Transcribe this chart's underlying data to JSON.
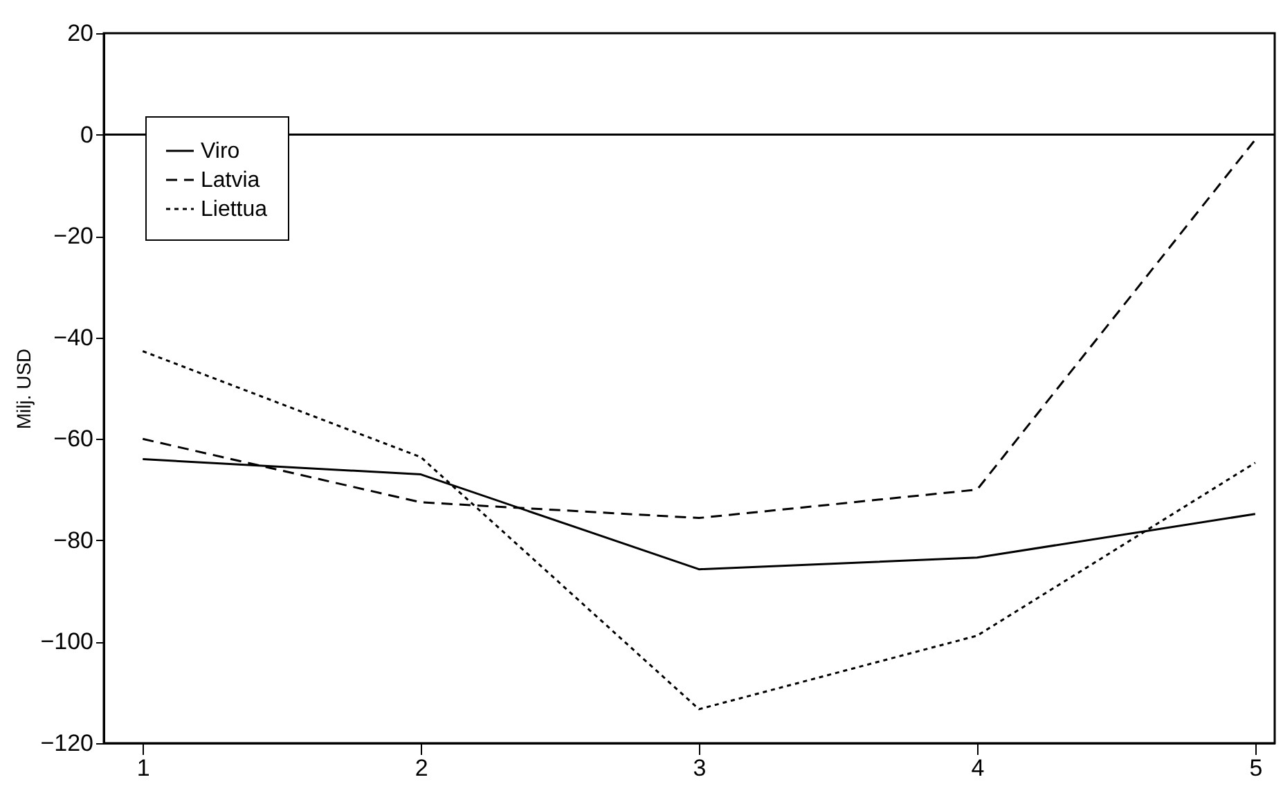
{
  "chart_data": {
    "type": "line",
    "ylabel": "Milj. USD",
    "x": [
      1,
      2,
      3,
      4,
      5
    ],
    "series": [
      {
        "name": "Viro",
        "color": "#000000",
        "line_style": "solid",
        "values": [
          -64,
          -67,
          -85.7,
          -83.4,
          -74.8
        ]
      },
      {
        "name": "Latvia",
        "color": "#000000",
        "line_style": "dashed",
        "values": [
          -60,
          -72.5,
          -75.6,
          -70,
          -1
        ]
      },
      {
        "name": "Liettua",
        "color": "#000000",
        "line_style": "dotted",
        "values": [
          -42.7,
          -63.6,
          -113.3,
          -98.8,
          -64.7
        ]
      }
    ],
    "xlim": [
      0.86,
      5.07
    ],
    "xticks": [
      1,
      2,
      3,
      4,
      5
    ],
    "ylim": [
      -120,
      20
    ],
    "yticks": [
      -120,
      -100,
      -80,
      -60,
      -40,
      -20,
      0,
      20
    ],
    "ref_lines": [
      {
        "axis": "y",
        "value": 0,
        "color": "#000000"
      }
    ],
    "grid": false,
    "legend": "top left",
    "marker": "none"
  }
}
